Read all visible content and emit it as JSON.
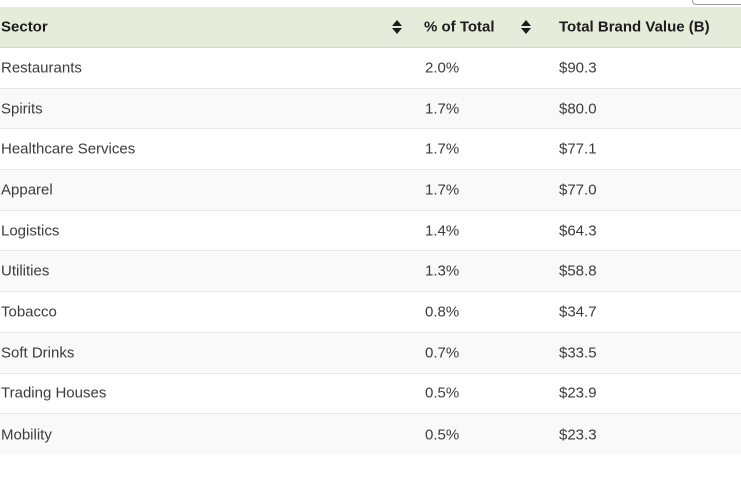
{
  "colors": {
    "header_bg": "#e5edda",
    "header_text": "#1c1c1c",
    "body_text": "#3c3c3c",
    "row_bg": "#ffffff",
    "alt_row_bg": "#f9f9f9",
    "divider": "#e8e8e8",
    "header_divider": "#d9d9d9",
    "input_border": "#9a9a9a"
  },
  "table": {
    "columns": [
      {
        "label": "Sector",
        "sortable": true,
        "sort_icon": "sort-updown-icon"
      },
      {
        "label": "% of Total",
        "sortable": true,
        "sort_icon": "sort-updown-icon"
      },
      {
        "label": "Total Brand Value (B)",
        "sortable": false
      }
    ],
    "rows": [
      {
        "sector": "Restaurants",
        "pct_of_total": "2.0%",
        "total_brand_value": "$90.3"
      },
      {
        "sector": "Spirits",
        "pct_of_total": "1.7%",
        "total_brand_value": "$80.0"
      },
      {
        "sector": "Healthcare Services",
        "pct_of_total": "1.7%",
        "total_brand_value": "$77.1"
      },
      {
        "sector": "Apparel",
        "pct_of_total": "1.7%",
        "total_brand_value": "$77.0"
      },
      {
        "sector": "Logistics",
        "pct_of_total": "1.4%",
        "total_brand_value": "$64.3"
      },
      {
        "sector": "Utilities",
        "pct_of_total": "1.3%",
        "total_brand_value": "$58.8"
      },
      {
        "sector": "Tobacco",
        "pct_of_total": "0.8%",
        "total_brand_value": "$34.7"
      },
      {
        "sector": "Soft Drinks",
        "pct_of_total": "0.7%",
        "total_brand_value": "$33.5"
      },
      {
        "sector": "Trading Houses",
        "pct_of_total": "0.5%",
        "total_brand_value": "$23.9"
      },
      {
        "sector": "Mobility",
        "pct_of_total": "0.5%",
        "total_brand_value": "$23.3"
      }
    ]
  }
}
